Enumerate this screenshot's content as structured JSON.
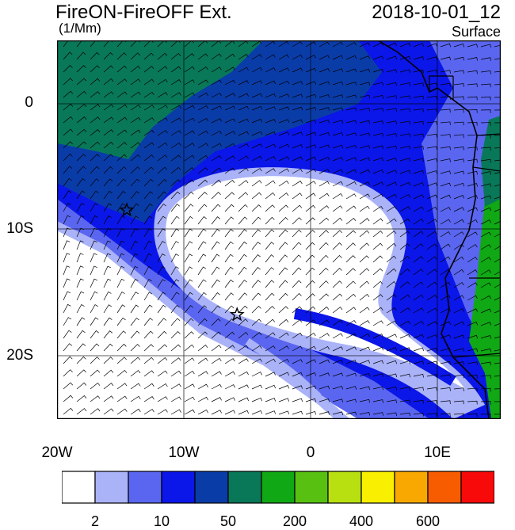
{
  "header": {
    "title": "FireON-FireOFF Ext.",
    "units": "(1/Mm)",
    "datetime": "2018-10-01_12",
    "level": "Surface"
  },
  "map": {
    "lon_range": [
      -20,
      15
    ],
    "lat_range": [
      -24,
      5
    ],
    "x_ticks": [
      {
        "value": -20,
        "label": "20W"
      },
      {
        "value": -10,
        "label": "10W"
      },
      {
        "value": 0,
        "label": "0"
      },
      {
        "value": 10,
        "label": "10E"
      }
    ],
    "y_ticks": [
      {
        "value": 0,
        "label": "0"
      },
      {
        "value": -10,
        "label": "10S"
      },
      {
        "value": -20,
        "label": "20S"
      }
    ],
    "markers": [
      {
        "name": "star",
        "lon": -14.5,
        "lat": -8
      },
      {
        "name": "star",
        "lon": -5.8,
        "lat": -16
      }
    ],
    "wind_barbs": true
  },
  "colorbar": {
    "colors": [
      "#ffffff",
      "#aab2f8",
      "#5a66f0",
      "#0b16e8",
      "#0a3ca8",
      "#087858",
      "#10a814",
      "#58c010",
      "#b8e010",
      "#f8f000",
      "#f8a800",
      "#f85c00",
      "#f80a0a"
    ],
    "labels": [
      {
        "index": 1,
        "text": "2"
      },
      {
        "index": 3,
        "text": "10"
      },
      {
        "index": 5,
        "text": "50"
      },
      {
        "index": 7,
        "text": "200"
      },
      {
        "index": 9,
        "text": "400"
      },
      {
        "index": 11,
        "text": "600"
      }
    ]
  }
}
